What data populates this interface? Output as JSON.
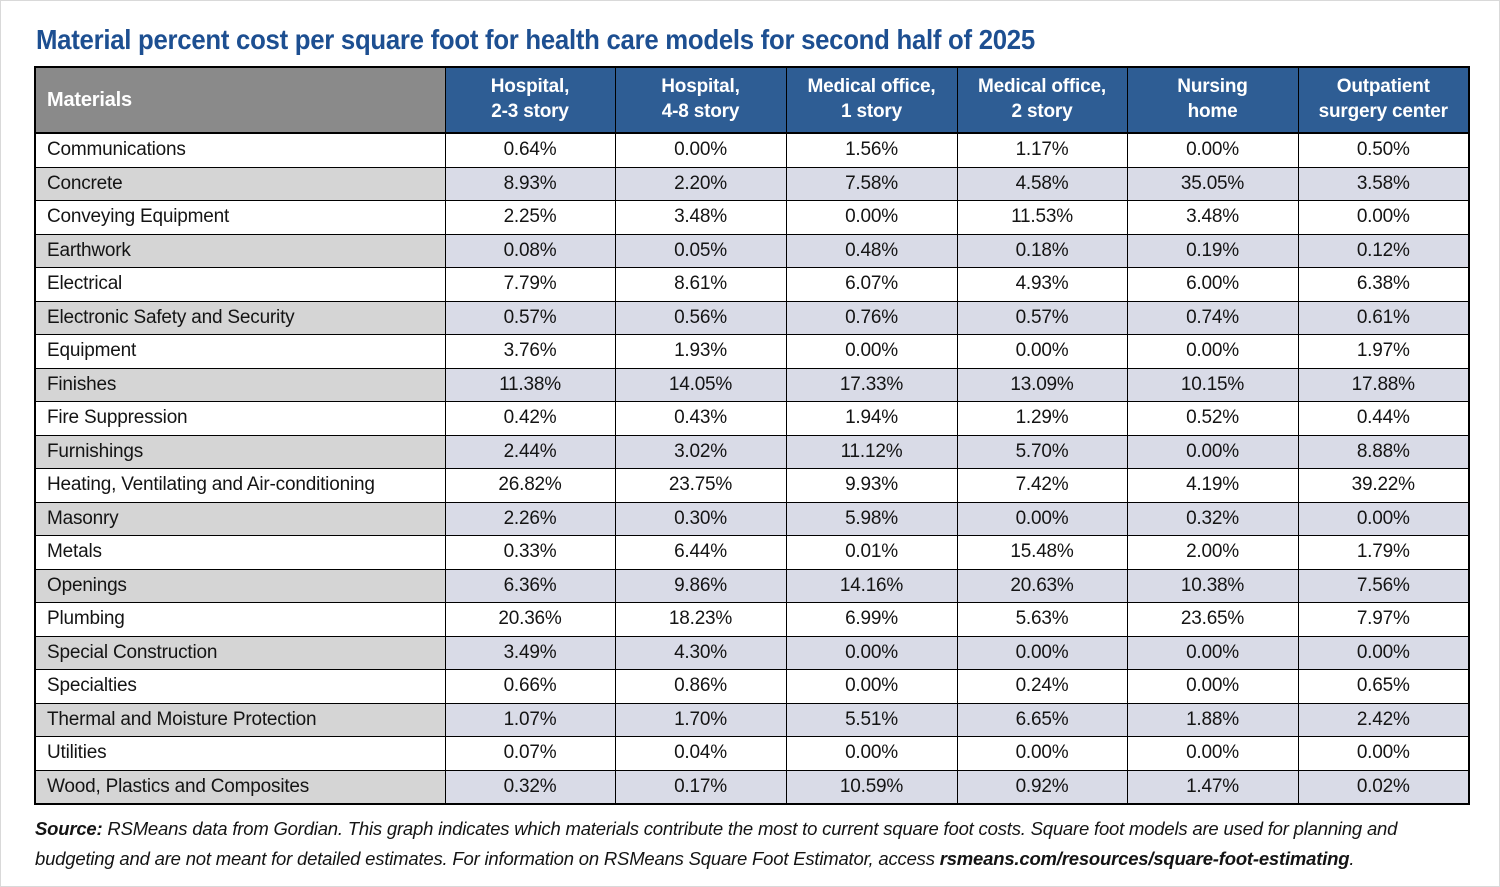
{
  "title": "Material percent cost per square foot for health care models for second half of 2025",
  "chart_data": {
    "type": "table",
    "title": "Material percent cost per square foot for health care models for second half of 2025",
    "units": "percent of square-foot cost",
    "columns": [
      "Materials",
      "Hospital,\n2-3 story",
      "Hospital,\n4-8 story",
      "Medical office,\n1 story",
      "Medical office,\n2 story",
      "Nursing\nhome",
      "Outpatient\nsurgery center"
    ],
    "rows": [
      {
        "material": "Communications",
        "values": [
          "0.64%",
          "0.00%",
          "1.56%",
          "1.17%",
          "0.00%",
          "0.50%"
        ]
      },
      {
        "material": "Concrete",
        "values": [
          "8.93%",
          "2.20%",
          "7.58%",
          "4.58%",
          "35.05%",
          "3.58%"
        ]
      },
      {
        "material": "Conveying Equipment",
        "values": [
          "2.25%",
          "3.48%",
          "0.00%",
          "11.53%",
          "3.48%",
          "0.00%"
        ]
      },
      {
        "material": "Earthwork",
        "values": [
          "0.08%",
          "0.05%",
          "0.48%",
          "0.18%",
          "0.19%",
          "0.12%"
        ]
      },
      {
        "material": "Electrical",
        "values": [
          "7.79%",
          "8.61%",
          "6.07%",
          "4.93%",
          "6.00%",
          "6.38%"
        ]
      },
      {
        "material": "Electronic Safety and Security",
        "values": [
          "0.57%",
          "0.56%",
          "0.76%",
          "0.57%",
          "0.74%",
          "0.61%"
        ]
      },
      {
        "material": "Equipment",
        "values": [
          "3.76%",
          "1.93%",
          "0.00%",
          "0.00%",
          "0.00%",
          "1.97%"
        ]
      },
      {
        "material": "Finishes",
        "values": [
          "11.38%",
          "14.05%",
          "17.33%",
          "13.09%",
          "10.15%",
          "17.88%"
        ]
      },
      {
        "material": "Fire Suppression",
        "values": [
          "0.42%",
          "0.43%",
          "1.94%",
          "1.29%",
          "0.52%",
          "0.44%"
        ]
      },
      {
        "material": "Furnishings",
        "values": [
          "2.44%",
          "3.02%",
          "11.12%",
          "5.70%",
          "0.00%",
          "8.88%"
        ]
      },
      {
        "material": "Heating, Ventilating and Air-conditioning",
        "values": [
          "26.82%",
          "23.75%",
          "9.93%",
          "7.42%",
          "4.19%",
          "39.22%"
        ]
      },
      {
        "material": "Masonry",
        "values": [
          "2.26%",
          "0.30%",
          "5.98%",
          "0.00%",
          "0.32%",
          "0.00%"
        ]
      },
      {
        "material": "Metals",
        "values": [
          "0.33%",
          "6.44%",
          "0.01%",
          "15.48%",
          "2.00%",
          "1.79%"
        ]
      },
      {
        "material": "Openings",
        "values": [
          "6.36%",
          "9.86%",
          "14.16%",
          "20.63%",
          "10.38%",
          "7.56%"
        ]
      },
      {
        "material": "Plumbing",
        "values": [
          "20.36%",
          "18.23%",
          "6.99%",
          "5.63%",
          "23.65%",
          "7.97%"
        ]
      },
      {
        "material": "Special Construction",
        "values": [
          "3.49%",
          "4.30%",
          "0.00%",
          "0.00%",
          "0.00%",
          "0.00%"
        ]
      },
      {
        "material": "Specialties",
        "values": [
          "0.66%",
          "0.86%",
          "0.00%",
          "0.24%",
          "0.00%",
          "0.65%"
        ]
      },
      {
        "material": "Thermal and Moisture Protection",
        "values": [
          "1.07%",
          "1.70%",
          "5.51%",
          "6.65%",
          "1.88%",
          "2.42%"
        ]
      },
      {
        "material": "Utilities",
        "values": [
          "0.07%",
          "0.04%",
          "0.00%",
          "0.00%",
          "0.00%",
          "0.00%"
        ]
      },
      {
        "material": "Wood, Plastics and Composites",
        "values": [
          "0.32%",
          "0.17%",
          "10.59%",
          "0.92%",
          "1.47%",
          "0.02%"
        ]
      }
    ]
  },
  "source_note": {
    "label": "Source:",
    "text": " RSMeans data from Gordian. This graph indicates which materials contribute the most to current square foot costs. Square foot models are used for planning and budgeting and are not meant for detailed estimates. For information on RSMeans Square Foot Estimator, access ",
    "url": "rsmeans.com/resources/square-foot-estimating",
    "suffix": "."
  },
  "colors": {
    "title_blue": "#1d4f91",
    "header_blue": "#2e5d94",
    "header_gray": "#8a8a8a",
    "shaded_label_gray": "#d5d5d5",
    "shaded_value_lavender": "#d9dbe7",
    "border_black": "#000000",
    "text_black": "#141414"
  }
}
